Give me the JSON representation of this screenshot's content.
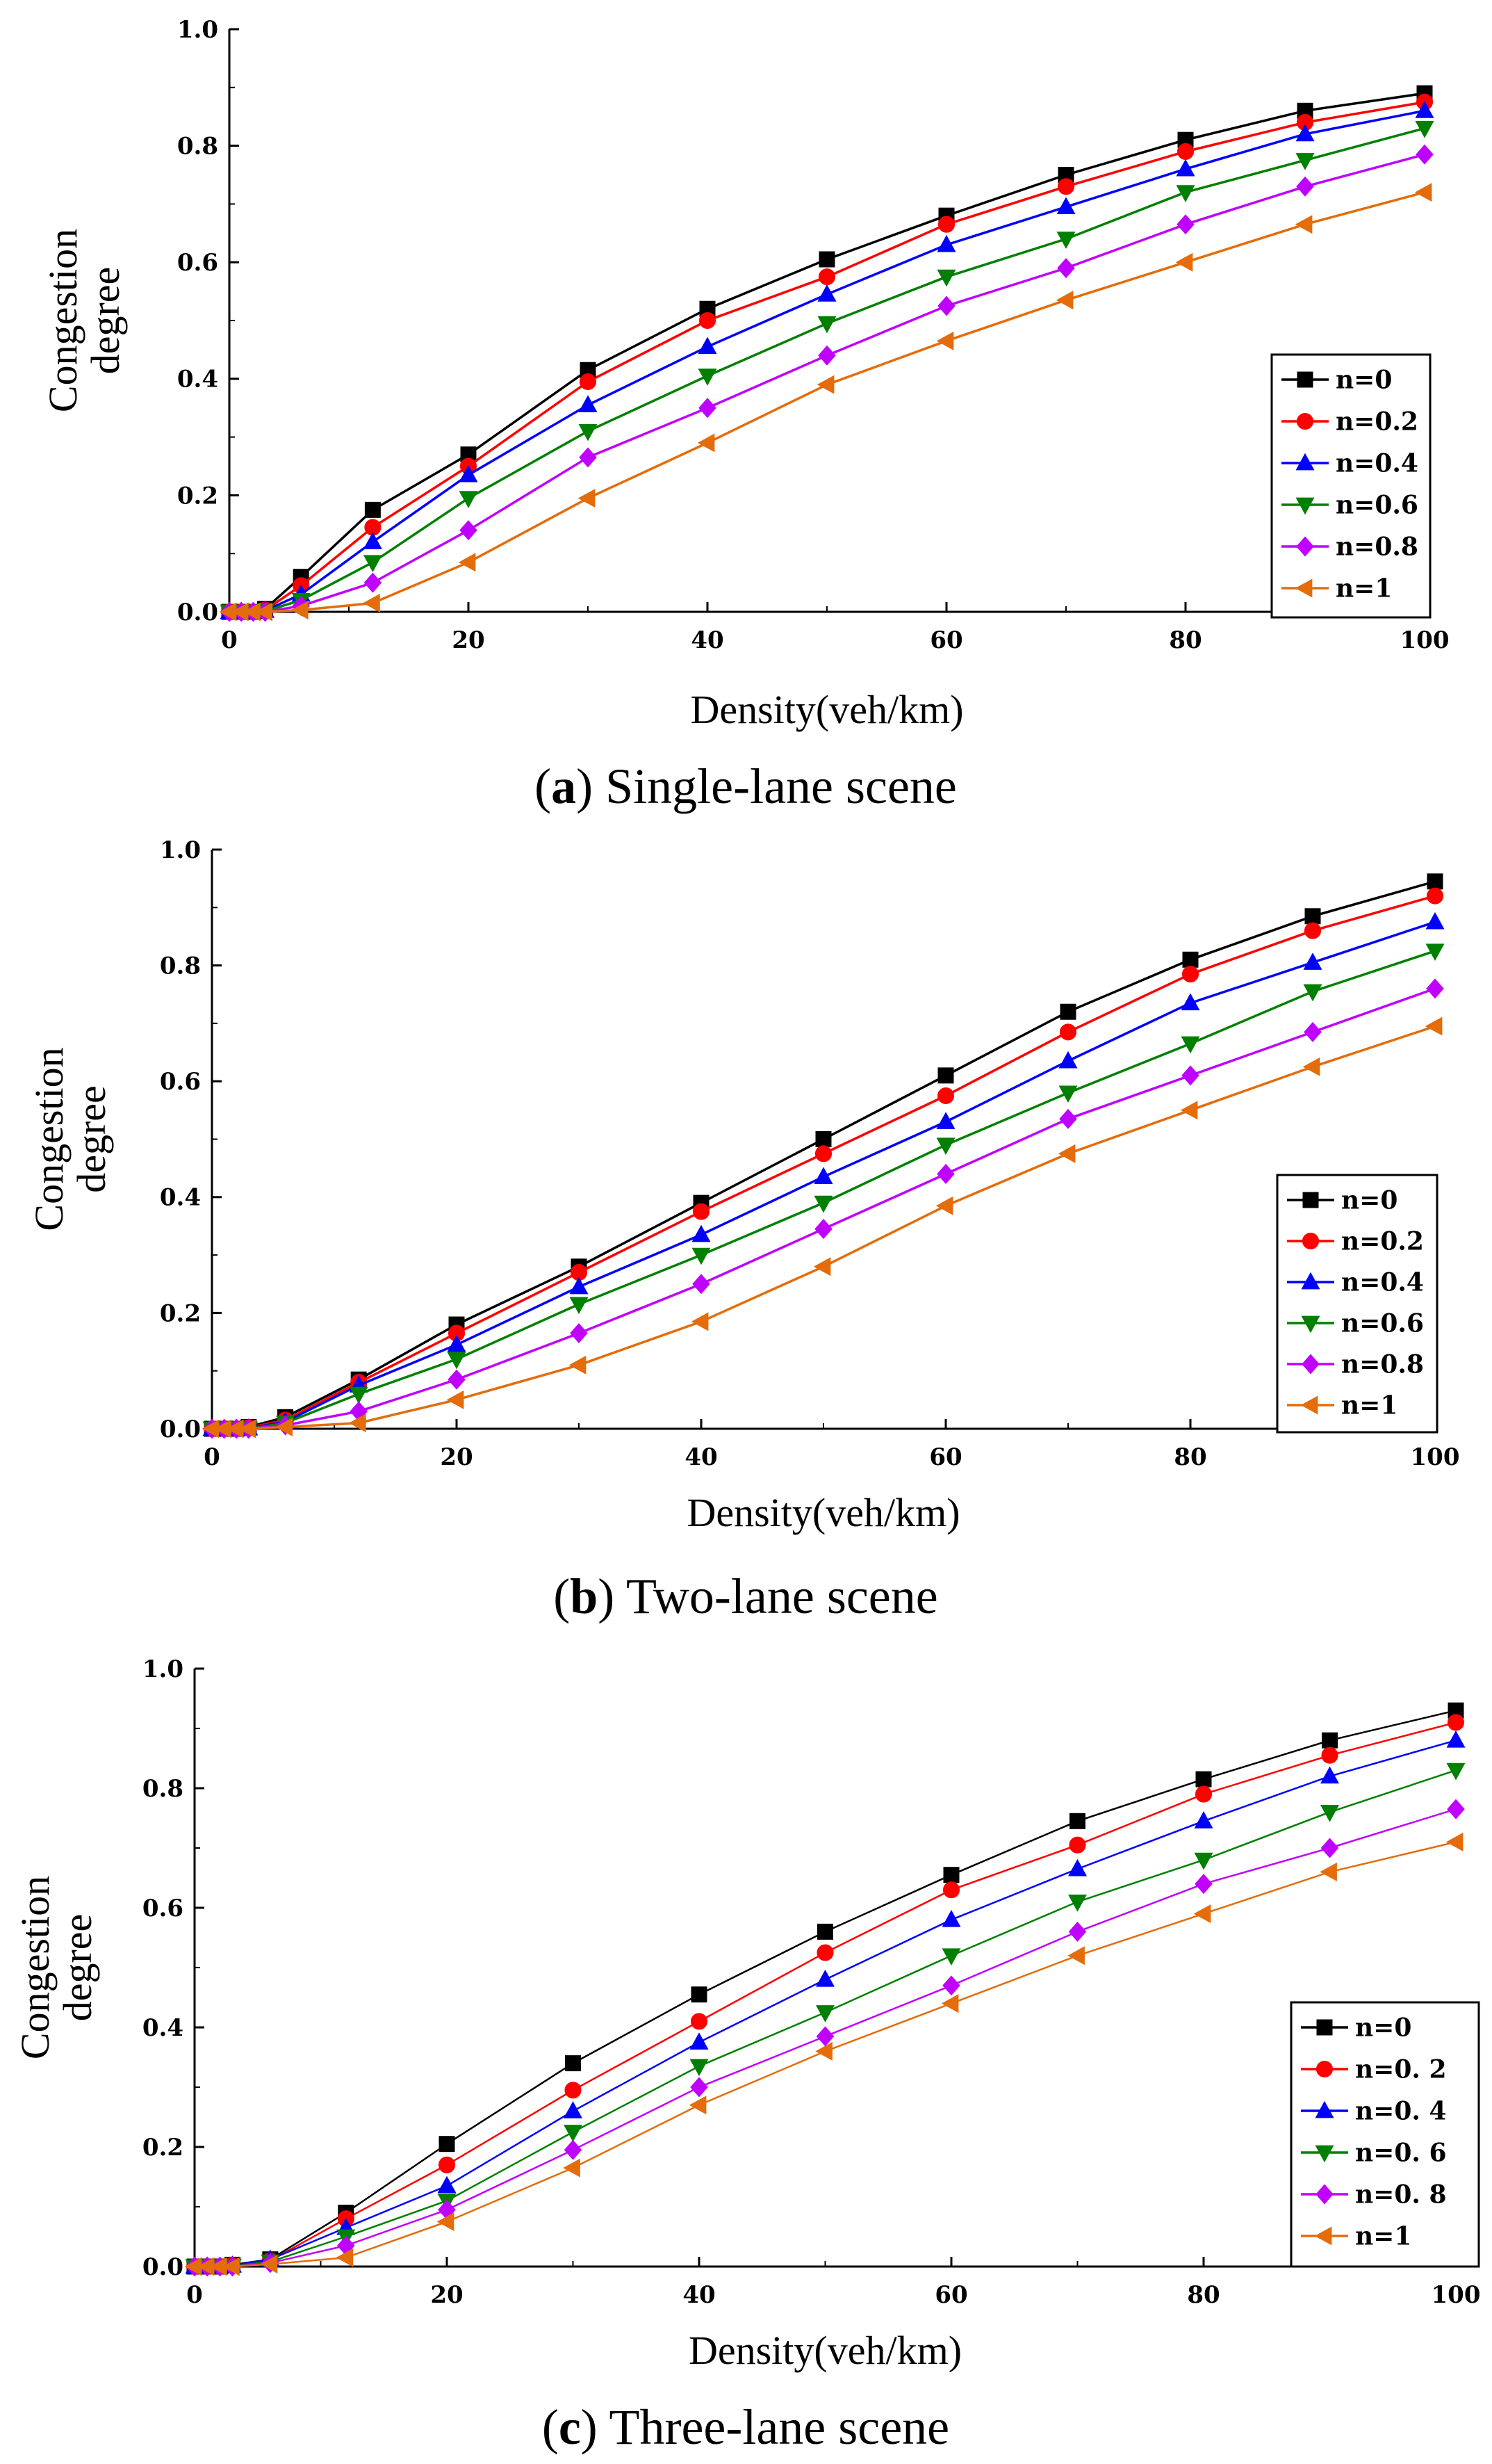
{
  "chart_data": [
    {
      "type": "line",
      "caption": {
        "letter": "a",
        "text": " Single-lane scene"
      },
      "xlabel": "Density(veh/km)",
      "ylabel": [
        "Congestion",
        "degree"
      ],
      "xlim": [
        0,
        100
      ],
      "ylim": [
        0,
        1
      ],
      "xticks": [
        "0",
        "20",
        "40",
        "60",
        "80",
        "100"
      ],
      "yticks": [
        "0.0",
        "0.2",
        "0.4",
        "0.6",
        "0.8",
        "1.0"
      ],
      "legend_position": "right",
      "x": [
        0,
        1,
        2,
        3,
        6,
        12,
        20,
        30,
        40,
        50,
        60,
        70,
        80,
        90,
        100
      ],
      "series": [
        {
          "name": "n=0",
          "color": "#000000",
          "marker": "square",
          "values": [
            0,
            0,
            0,
            0.005,
            0.06,
            0.175,
            0.27,
            0.415,
            0.52,
            0.605,
            0.68,
            0.75,
            0.81,
            0.86,
            0.89
          ]
        },
        {
          "name": "n=0.2",
          "color": "#ff0000",
          "marker": "circle",
          "values": [
            0,
            0,
            0,
            0.003,
            0.045,
            0.145,
            0.25,
            0.395,
            0.5,
            0.575,
            0.665,
            0.73,
            0.79,
            0.84,
            0.875
          ]
        },
        {
          "name": "n=0.4",
          "color": "#0000ff",
          "marker": "triangle-up",
          "values": [
            0,
            0,
            0,
            0.002,
            0.03,
            0.12,
            0.235,
            0.355,
            0.455,
            0.545,
            0.63,
            0.695,
            0.76,
            0.82,
            0.86
          ]
        },
        {
          "name": "n=0.6",
          "color": "#008000",
          "marker": "triangle-down",
          "values": [
            0,
            0,
            0,
            0.001,
            0.02,
            0.085,
            0.195,
            0.31,
            0.405,
            0.495,
            0.575,
            0.64,
            0.72,
            0.775,
            0.83
          ]
        },
        {
          "name": "n=0.8",
          "color": "#bf00ff",
          "marker": "diamond",
          "values": [
            0,
            0,
            0,
            0,
            0.01,
            0.05,
            0.14,
            0.265,
            0.35,
            0.44,
            0.525,
            0.59,
            0.665,
            0.73,
            0.785
          ]
        },
        {
          "name": "n=1",
          "color": "#e46c0a",
          "marker": "triangle-left",
          "values": [
            0,
            0,
            0,
            0,
            0.003,
            0.015,
            0.085,
            0.195,
            0.29,
            0.39,
            0.465,
            0.535,
            0.6,
            0.665,
            0.72
          ]
        }
      ]
    },
    {
      "type": "line",
      "caption": {
        "letter": "b",
        "text": " Two-lane scene"
      },
      "xlabel": "Density(veh/km)",
      "ylabel": [
        "Congestion",
        "degree"
      ],
      "xlim": [
        0,
        100
      ],
      "ylim": [
        0,
        1
      ],
      "xticks": [
        "0",
        "20",
        "40",
        "60",
        "80",
        "100"
      ],
      "yticks": [
        "0.0",
        "0.2",
        "0.4",
        "0.6",
        "0.8",
        "1.0"
      ],
      "legend_position": "right",
      "x": [
        0,
        1,
        2,
        3,
        6,
        12,
        20,
        30,
        40,
        50,
        60,
        70,
        80,
        90,
        100
      ],
      "series": [
        {
          "name": "n=0",
          "color": "#000000",
          "marker": "square",
          "values": [
            0,
            0,
            0,
            0.003,
            0.02,
            0.085,
            0.18,
            0.28,
            0.39,
            0.5,
            0.61,
            0.72,
            0.81,
            0.885,
            0.945
          ]
        },
        {
          "name": "n=0.2",
          "color": "#ff0000",
          "marker": "circle",
          "values": [
            0,
            0,
            0,
            0.002,
            0.015,
            0.08,
            0.165,
            0.27,
            0.375,
            0.475,
            0.575,
            0.685,
            0.785,
            0.86,
            0.92
          ]
        },
        {
          "name": "n=0.4",
          "color": "#0000ff",
          "marker": "triangle-up",
          "values": [
            0,
            0,
            0,
            0.001,
            0.012,
            0.075,
            0.145,
            0.245,
            0.335,
            0.435,
            0.53,
            0.635,
            0.735,
            0.805,
            0.875
          ]
        },
        {
          "name": "n=0.6",
          "color": "#008000",
          "marker": "triangle-down",
          "values": [
            0,
            0,
            0,
            0,
            0.01,
            0.06,
            0.12,
            0.215,
            0.3,
            0.39,
            0.49,
            0.58,
            0.665,
            0.755,
            0.825
          ]
        },
        {
          "name": "n=0.8",
          "color": "#bf00ff",
          "marker": "diamond",
          "values": [
            0,
            0,
            0,
            0,
            0.006,
            0.03,
            0.085,
            0.165,
            0.25,
            0.345,
            0.44,
            0.535,
            0.61,
            0.685,
            0.76
          ]
        },
        {
          "name": "n=1",
          "color": "#e46c0a",
          "marker": "triangle-left",
          "values": [
            0,
            0,
            0,
            0,
            0.003,
            0.01,
            0.05,
            0.11,
            0.185,
            0.28,
            0.385,
            0.475,
            0.55,
            0.625,
            0.695
          ]
        }
      ]
    },
    {
      "type": "line",
      "caption": {
        "letter": "c",
        "text": " Three-lane scene"
      },
      "xlabel": "Density(veh/km)",
      "ylabel": [
        "Congestion",
        "degree"
      ],
      "xlim": [
        0,
        100
      ],
      "ylim": [
        0,
        1
      ],
      "xticks": [
        "0",
        "20",
        "40",
        "60",
        "80",
        "100"
      ],
      "yticks": [
        "0.0",
        "0.2",
        "0.4",
        "0.6",
        "0.8",
        "1.0"
      ],
      "legend_position": "right",
      "x": [
        0,
        1,
        2,
        3,
        6,
        12,
        20,
        30,
        40,
        50,
        60,
        70,
        80,
        90,
        100
      ],
      "series": [
        {
          "name": "n=0",
          "color": "#000000",
          "marker": "square",
          "values": [
            0,
            0,
            0,
            0.003,
            0.012,
            0.09,
            0.205,
            0.34,
            0.455,
            0.56,
            0.655,
            0.745,
            0.815,
            0.88,
            0.93
          ]
        },
        {
          "name": "n=0. 2",
          "color": "#ff0000",
          "marker": "circle",
          "values": [
            0,
            0,
            0,
            0.002,
            0.01,
            0.08,
            0.17,
            0.295,
            0.41,
            0.525,
            0.63,
            0.705,
            0.79,
            0.855,
            0.91
          ]
        },
        {
          "name": "n=0. 4",
          "color": "#0000ff",
          "marker": "triangle-up",
          "values": [
            0,
            0,
            0,
            0.002,
            0.012,
            0.065,
            0.135,
            0.26,
            0.375,
            0.48,
            0.58,
            0.665,
            0.745,
            0.82,
            0.88
          ]
        },
        {
          "name": "n=0. 6",
          "color": "#008000",
          "marker": "triangle-down",
          "values": [
            0,
            0,
            0,
            0.001,
            0.008,
            0.05,
            0.11,
            0.225,
            0.335,
            0.425,
            0.52,
            0.61,
            0.68,
            0.76,
            0.83
          ]
        },
        {
          "name": "n=0. 8",
          "color": "#bf00ff",
          "marker": "diamond",
          "values": [
            0,
            0,
            0,
            0,
            0.006,
            0.035,
            0.095,
            0.195,
            0.3,
            0.385,
            0.47,
            0.56,
            0.64,
            0.7,
            0.765
          ]
        },
        {
          "name": "n=1",
          "color": "#e46c0a",
          "marker": "triangle-left",
          "values": [
            0,
            0,
            0,
            0,
            0.004,
            0.015,
            0.075,
            0.165,
            0.27,
            0.36,
            0.44,
            0.52,
            0.59,
            0.66,
            0.71
          ]
        }
      ]
    }
  ]
}
